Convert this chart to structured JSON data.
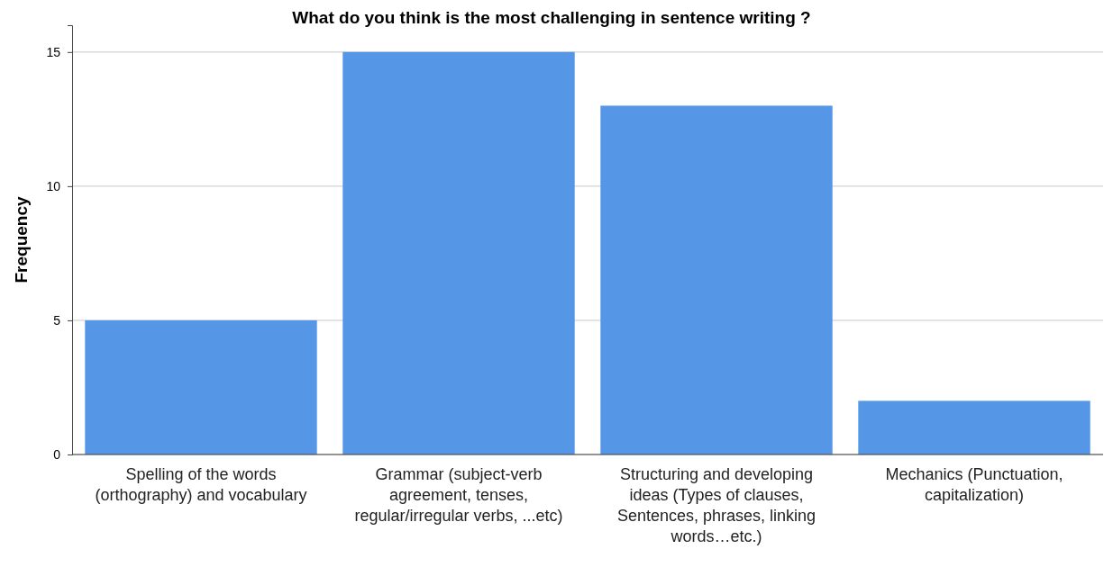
{
  "chart_data": {
    "type": "bar",
    "title": "What do you think is the most challenging in sentence writing ?",
    "ylabel": "Frequency",
    "categories": [
      "Spelling of the words (orthography) and vocabulary",
      "Grammar (subject-verb agreement, tenses, regular/irregular verbs, ...etc)",
      "Structuring and developing ideas (Types of clauses, Sentences, phrases, linking words…etc.)",
      "Mechanics (Punctuation, capitalization)"
    ],
    "values": [
      5,
      15,
      13,
      2
    ],
    "color": "#5596e6",
    "ylim": [
      0,
      16
    ],
    "yticks": [
      0,
      5,
      10,
      15
    ],
    "grid": "y"
  }
}
